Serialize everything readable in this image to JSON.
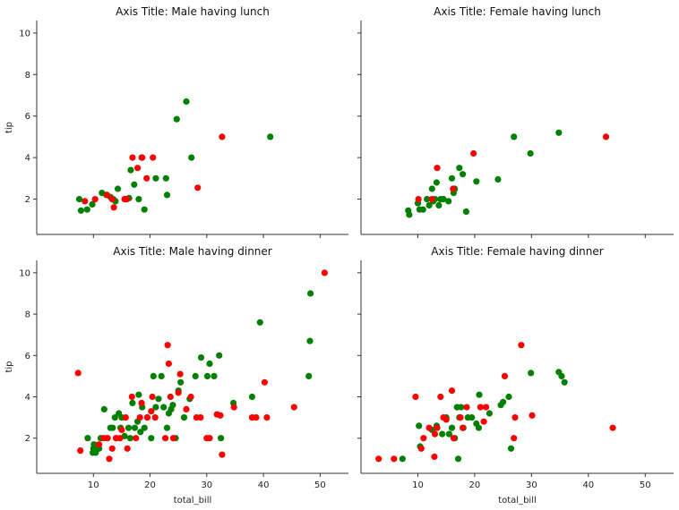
{
  "colors": {
    "smoker_yes": "#ff0000",
    "smoker_no": "#008000",
    "axis": "#333333"
  },
  "chart_data": [
    {
      "type": "scatter",
      "title": "Axis Title: Male having lunch",
      "xlabel": "",
      "ylabel": "tip",
      "xlim": [
        0,
        55
      ],
      "ylim": [
        0.3,
        10.6
      ],
      "xticks": [],
      "yticks": [
        2,
        4,
        6,
        8,
        10
      ],
      "grid": false,
      "series": [
        {
          "color": "#008000",
          "x": [
            7.5,
            7.8,
            8.9,
            9.8,
            11.5,
            12.3,
            13.0,
            13.5,
            13.9,
            14.3,
            15.6,
            16.3,
            16.6,
            17.2,
            18.0,
            18.5,
            19.0,
            21.0,
            22.8,
            23.0,
            24.7,
            26.4,
            27.3,
            41.2
          ],
          "y": [
            2.0,
            1.45,
            1.5,
            1.75,
            2.3,
            2.2,
            2.1,
            2.0,
            1.9,
            2.5,
            2.0,
            2.05,
            3.4,
            2.7,
            2.0,
            4.0,
            1.5,
            3.0,
            3.0,
            2.2,
            5.85,
            6.7,
            4.0,
            5.0
          ]
        },
        {
          "color": "#ff0000",
          "x": [
            8.5,
            10.3,
            12.4,
            13.3,
            13.6,
            15.5,
            15.9,
            16.9,
            17.8,
            18.6,
            19.4,
            20.5,
            28.4,
            32.7
          ],
          "y": [
            1.9,
            2.0,
            2.2,
            2.0,
            1.6,
            2.0,
            2.0,
            4.0,
            3.5,
            4.0,
            3.0,
            4.0,
            2.55,
            5.0
          ]
        }
      ]
    },
    {
      "type": "scatter",
      "title": "Axis Title: Female having lunch",
      "xlabel": "",
      "ylabel": "",
      "xlim": [
        0,
        55
      ],
      "ylim": [
        0.3,
        10.6
      ],
      "xticks": [],
      "yticks": [],
      "grid": false,
      "series": [
        {
          "color": "#008000",
          "x": [
            8.3,
            8.5,
            10.0,
            10.3,
            10.9,
            11.6,
            12.0,
            12.5,
            12.7,
            13.0,
            13.3,
            13.7,
            14.0,
            14.5,
            15.4,
            16.0,
            16.3,
            16.5,
            17.3,
            17.9,
            18.5,
            20.3,
            24.1,
            26.9,
            29.8,
            34.8
          ],
          "y": [
            1.45,
            1.25,
            1.8,
            1.5,
            1.5,
            2.0,
            1.7,
            2.5,
            1.9,
            2.0,
            2.8,
            1.7,
            2.0,
            2.0,
            1.9,
            3.0,
            2.3,
            2.5,
            3.5,
            3.2,
            1.4,
            2.85,
            2.95,
            5.0,
            4.2,
            5.2
          ]
        },
        {
          "color": "#ff0000",
          "x": [
            10.1,
            12.5,
            13.4,
            16.2,
            19.8,
            43.1
          ],
          "y": [
            2.0,
            2.0,
            3.5,
            2.5,
            4.2,
            5.0
          ]
        }
      ]
    },
    {
      "type": "scatter",
      "title": "Axis Title: Male having dinner",
      "xlabel": "total_bill",
      "ylabel": "tip",
      "xlim": [
        0,
        55
      ],
      "ylim": [
        0.3,
        10.6
      ],
      "xticks": [
        10,
        20,
        30,
        40,
        50
      ],
      "yticks": [
        2,
        4,
        6,
        8,
        10
      ],
      "grid": false,
      "series": [
        {
          "color": "#008000",
          "x": [
            9.0,
            9.9,
            10.0,
            10.1,
            10.3,
            10.4,
            10.7,
            11.0,
            11.3,
            11.9,
            12.4,
            13.0,
            13.4,
            13.8,
            14.0,
            14.5,
            14.8,
            15.0,
            15.5,
            16.2,
            16.5,
            16.9,
            17.3,
            17.8,
            18.0,
            18.3,
            18.6,
            19.0,
            19.5,
            20.2,
            20.6,
            21.0,
            21.5,
            22.0,
            22.4,
            23.0,
            23.3,
            23.7,
            24.0,
            24.5,
            25.0,
            25.4,
            26.0,
            27.0,
            28.0,
            29.0,
            30.1,
            30.5,
            31.3,
            32.2,
            32.5,
            34.7,
            38.0,
            39.4,
            48.0,
            48.2,
            48.3
          ],
          "y": [
            2.0,
            1.3,
            1.5,
            1.7,
            1.4,
            1.3,
            1.6,
            1.5,
            2.0,
            3.4,
            2.0,
            2.5,
            2.5,
            3.0,
            2.0,
            3.2,
            2.5,
            3.0,
            2.1,
            2.5,
            2.0,
            3.7,
            2.5,
            2.8,
            4.1,
            2.3,
            3.5,
            2.5,
            3.0,
            2.0,
            5.0,
            3.5,
            3.9,
            5.0,
            3.5,
            2.5,
            3.2,
            3.4,
            3.6,
            2.0,
            4.3,
            4.7,
            3.0,
            3.9,
            5.0,
            5.9,
            5.0,
            5.6,
            5.0,
            6.0,
            2.0,
            3.7,
            4.0,
            7.6,
            5.0,
            6.7,
            9.0
          ]
        },
        {
          "color": "#ff0000",
          "x": [
            7.3,
            7.7,
            11.0,
            11.8,
            12.5,
            12.8,
            13.3,
            14.0,
            14.7,
            15.0,
            15.7,
            16.0,
            16.8,
            17.5,
            18.2,
            18.5,
            19.5,
            20.2,
            20.4,
            20.9,
            22.7,
            23.1,
            23.3,
            23.6,
            24.1,
            25.0,
            25.3,
            26.4,
            27.2,
            28.2,
            28.9,
            30.0,
            30.5,
            31.8,
            32.4,
            32.7,
            34.8,
            38.0,
            38.7,
            40.2,
            40.6,
            45.4,
            50.8
          ],
          "y": [
            5.15,
            1.4,
            1.7,
            2.0,
            2.0,
            1.0,
            1.5,
            2.0,
            2.0,
            2.4,
            3.0,
            1.5,
            4.0,
            2.0,
            3.0,
            3.7,
            3.0,
            3.3,
            4.0,
            3.0,
            2.0,
            6.5,
            5.6,
            4.0,
            2.0,
            4.2,
            5.1,
            3.4,
            4.0,
            3.0,
            3.0,
            2.0,
            2.0,
            3.15,
            3.1,
            1.2,
            3.5,
            3.0,
            3.0,
            4.7,
            3.0,
            3.5,
            10.0
          ]
        }
      ]
    },
    {
      "type": "scatter",
      "title": "Axis Title: Female having dinner",
      "xlabel": "total_bill",
      "ylabel": "",
      "xlim": [
        0,
        55
      ],
      "ylim": [
        0.3,
        10.6
      ],
      "xticks": [
        10,
        20,
        30,
        40,
        50
      ],
      "yticks": [],
      "grid": false,
      "series": [
        {
          "color": "#008000",
          "x": [
            7.3,
            10.2,
            10.4,
            12.5,
            13.3,
            14.3,
            15.0,
            15.5,
            16.0,
            16.5,
            16.9,
            17.1,
            17.3,
            17.6,
            18.0,
            18.8,
            19.5,
            20.3,
            20.7,
            20.8,
            22.6,
            24.6,
            25.0,
            26.0,
            26.4,
            29.9,
            34.8,
            35.3,
            35.8
          ],
          "y": [
            1.0,
            2.6,
            1.6,
            2.4,
            2.6,
            2.2,
            3.0,
            2.2,
            2.5,
            2.0,
            3.5,
            1.0,
            3.0,
            3.5,
            2.5,
            3.0,
            3.0,
            2.7,
            2.5,
            4.1,
            3.2,
            3.6,
            3.75,
            4.0,
            1.5,
            5.15,
            5.2,
            5.0,
            4.7
          ]
        },
        {
          "color": "#ff0000",
          "x": [
            3.1,
            5.8,
            9.6,
            10.6,
            11.0,
            12.0,
            12.9,
            13.0,
            13.4,
            14.0,
            14.5,
            15.0,
            16.0,
            16.3,
            17.5,
            17.9,
            18.6,
            21.0,
            21.6,
            22.0,
            25.3,
            26.9,
            27.1,
            28.2,
            30.1,
            44.3
          ],
          "y": [
            1.0,
            1.0,
            4.0,
            1.5,
            2.0,
            2.5,
            1.1,
            2.2,
            2.5,
            4.0,
            3.0,
            2.9,
            4.3,
            2.0,
            3.0,
            2.5,
            3.5,
            3.5,
            2.8,
            3.5,
            5.0,
            2.0,
            3.0,
            6.5,
            3.1,
            2.5
          ]
        }
      ]
    }
  ]
}
